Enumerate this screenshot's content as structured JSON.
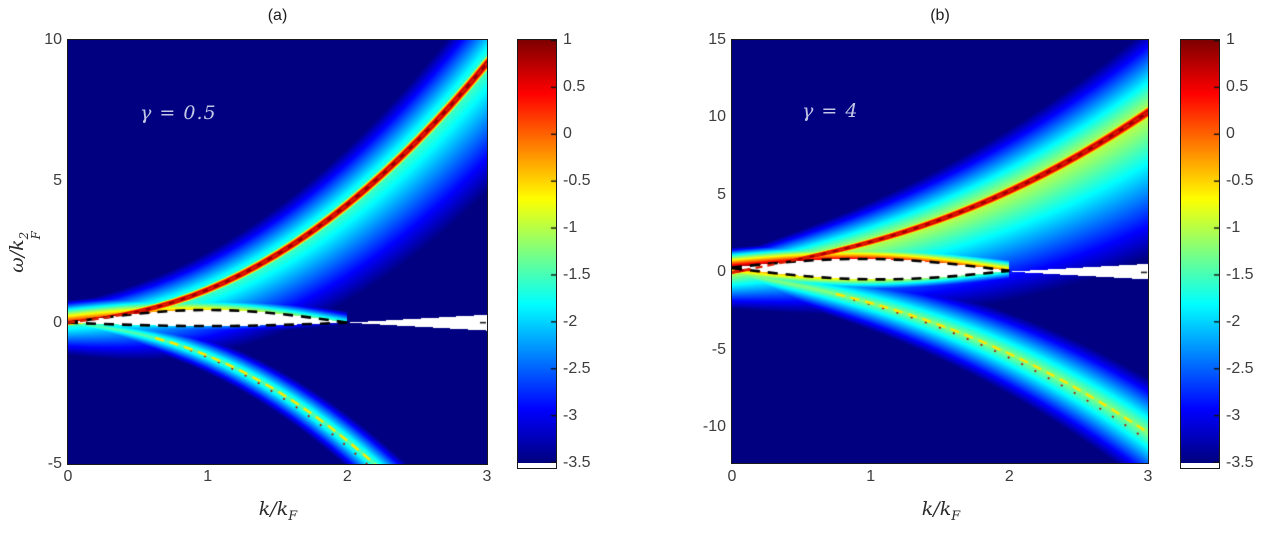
{
  "figure_background": "#ffffff",
  "colorbar": {
    "clim": [
      -3.5,
      1
    ],
    "colormap": "jet",
    "tick_values": [
      1,
      0.5,
      0,
      -0.5,
      -1,
      -1.5,
      -2,
      -2.5,
      -3,
      -3.5
    ],
    "tick_labels": [
      "1",
      "0.5",
      "0",
      "-0.5",
      "-1",
      "-1.5",
      "-2",
      "-2.5",
      "-3",
      "-3.5"
    ]
  },
  "chart_data": [
    {
      "type": "heatmap",
      "panel": "a",
      "title": "(a)",
      "annotation": "γ = 0.5",
      "gamma": 0.5,
      "xlabel": {
        "base": "k/k",
        "sub": "F"
      },
      "ylabel": {
        "base": "ω/k",
        "sup": "2",
        "sub": "F"
      },
      "xlim": [
        0,
        3
      ],
      "ylim": [
        -5,
        10
      ],
      "xtick_values": [
        0,
        1,
        2,
        3
      ],
      "xtick_labels": [
        "0",
        "1",
        "2",
        "3"
      ],
      "ytick_values": [
        10,
        5,
        0,
        -5
      ],
      "ytick_labels": [
        "10",
        "5",
        "0",
        "-5"
      ],
      "clim": [
        -3.5,
        1
      ],
      "colormap": "jet",
      "sound_speed": 0.6,
      "k": [
        0,
        0.125,
        0.25,
        0.375,
        0.5,
        0.625,
        0.75,
        0.875,
        1,
        1.125,
        1.25,
        1.375,
        1.5,
        1.625,
        1.75,
        1.875,
        2,
        2.125,
        2.25,
        2.375,
        2.5,
        2.625,
        2.75,
        2.875,
        3
      ],
      "curves": {
        "bogoliubov_red_dashed": {
          "color": "#d81e00",
          "omega": [
            0,
            0.077,
            0.163,
            0.265,
            0.391,
            0.542,
            0.72,
            0.928,
            1.166,
            1.434,
            1.733,
            2.063,
            2.423,
            2.815,
            3.238,
            3.691,
            4.176,
            4.692,
            5.24,
            5.818,
            6.427,
            7.068,
            7.74,
            8.444,
            9.178
          ]
        },
        "mirror_yellow_dashed": {
          "color": "#ffe800",
          "k_start": 0.625,
          "omega": [
            0,
            -0.077,
            -0.163,
            -0.265,
            -0.391,
            -0.542,
            -0.72,
            -0.928,
            -1.166,
            -1.434,
            -1.733,
            -2.063,
            -2.423,
            -2.815,
            -3.238,
            -3.691,
            -4.176,
            -4.692,
            -5.24,
            -5.818,
            -6.427,
            -7.068,
            -7.74,
            -8.444,
            -9.178
          ]
        },
        "lens_upper_black_dashed": {
          "color": "#000000",
          "k": [
            0,
            0.125,
            0.25,
            0.375,
            0.5,
            0.625,
            0.75,
            0.875,
            1,
            1.125,
            1.25,
            1.375,
            1.5,
            1.625,
            1.75,
            1.875,
            2
          ],
          "omega": [
            0,
            0.088,
            0.172,
            0.25,
            0.318,
            0.374,
            0.416,
            0.441,
            0.45,
            0.441,
            0.416,
            0.374,
            0.318,
            0.25,
            0.172,
            0.088,
            0
          ]
        },
        "lens_lower_black_dashed": {
          "color": "#000000",
          "k": [
            0,
            0.125,
            0.25,
            0.375,
            0.5,
            0.625,
            0.75,
            0.875,
            1,
            1.125,
            1.25,
            1.375,
            1.5,
            1.625,
            1.75,
            1.875,
            2
          ],
          "omega": [
            0,
            -0.023,
            -0.046,
            -0.067,
            -0.085,
            -0.1,
            -0.111,
            -0.118,
            -0.12,
            -0.118,
            -0.111,
            -0.1,
            -0.085,
            -0.067,
            -0.046,
            -0.023,
            0
          ]
        }
      },
      "white_wedge": {
        "k_start": 2,
        "center": 0,
        "slope": 0.28
      },
      "render": {
        "core": [
          0.09,
          0.05,
          0.95
        ],
        "halo": [
          -1.4,
          1.1
        ],
        "haloUp": [
          0.35,
          0.35
        ],
        "haloDn": [
          0.6,
          0.6
        ],
        "neg": [
          0.3,
          0.3,
          -1.4,
          2.0
        ],
        "thUp": [
          0.5,
          1.0,
          5.0
        ],
        "thDn": [
          -1.2,
          1.0,
          4.0
        ]
      }
    },
    {
      "type": "heatmap",
      "panel": "b",
      "title": "(b)",
      "annotation": "γ = 4",
      "gamma": 4,
      "xlabel": {
        "base": "k/k",
        "sub": "F"
      },
      "ylabel": {
        "base": "ω/k",
        "sup": "2",
        "sub": "F"
      },
      "xlim": [
        0,
        3
      ],
      "ylim": [
        -12.3,
        15
      ],
      "xtick_values": [
        0,
        1,
        2,
        3
      ],
      "xtick_labels": [
        "0",
        "1",
        "2",
        "3"
      ],
      "ytick_values": [
        15,
        10,
        5,
        0,
        -5,
        -10
      ],
      "ytick_labels": [
        "15",
        "10",
        "5",
        "0",
        "-5",
        "-10"
      ],
      "clim": [
        -3.5,
        1
      ],
      "colormap": "jet",
      "sound_speed": 1.7,
      "k": [
        0,
        0.125,
        0.25,
        0.375,
        0.5,
        0.625,
        0.75,
        0.875,
        1,
        1.125,
        1.25,
        1.375,
        1.5,
        1.625,
        1.75,
        1.875,
        2,
        2.125,
        2.25,
        2.375,
        2.5,
        2.625,
        2.75,
        2.875,
        3
      ],
      "curves": {
        "bogoliubov_red_dashed": {
          "color": "#d81e00",
          "omega": [
            0,
            0.213,
            0.43,
            0.653,
            0.886,
            1.132,
            1.394,
            1.673,
            1.972,
            2.293,
            2.638,
            3.006,
            3.401,
            3.822,
            4.27,
            4.745,
            5.25,
            5.783,
            6.345,
            6.937,
            7.558,
            8.209,
            8.891,
            9.603,
            10.345
          ]
        },
        "mirror_yellow_dashed": {
          "color": "#ffe800",
          "k_start": 0.75,
          "omega": [
            0,
            -0.213,
            -0.43,
            -0.653,
            -0.886,
            -1.132,
            -1.394,
            -1.673,
            -1.972,
            -2.293,
            -2.638,
            -3.006,
            -3.401,
            -3.822,
            -4.27,
            -4.745,
            -5.25,
            -5.783,
            -6.345,
            -6.937,
            -7.558,
            -8.209,
            -8.891,
            -9.603,
            -10.345
          ]
        },
        "lens_upper_black_dashed": {
          "color": "#000000",
          "k": [
            0,
            0.125,
            0.25,
            0.375,
            0.5,
            0.625,
            0.75,
            0.875,
            1,
            1.125,
            1.25,
            1.375,
            1.5,
            1.625,
            1.75,
            1.875,
            2
          ],
          "omega": [
            0.32,
            0.435,
            0.545,
            0.646,
            0.732,
            0.8,
            0.847,
            0.871,
            0.87,
            0.844,
            0.792,
            0.718,
            0.622,
            0.508,
            0.38,
            0.243,
            0.1
          ]
        },
        "lens_lower_black_dashed": {
          "color": "#000000",
          "k": [
            0,
            0.125,
            0.25,
            0.375,
            0.5,
            0.625,
            0.75,
            0.875,
            1,
            1.125,
            1.25,
            1.375,
            1.5,
            1.625,
            1.75,
            1.875,
            2
          ],
          "omega": [
            0.28,
            0.144,
            0.013,
            -0.109,
            -0.218,
            -0.308,
            -0.379,
            -0.427,
            -0.45,
            -0.449,
            -0.424,
            -0.376,
            -0.308,
            -0.222,
            -0.122,
            -0.014,
            0.1
          ]
        }
      },
      "white_wedge": {
        "k_start": 2,
        "center": 0.05,
        "slope": 0.5
      },
      "render": {
        "core": [
          0.14,
          0.08,
          0.92
        ],
        "halo": [
          -0.9,
          1.1
        ],
        "haloUp": [
          0.5,
          0.6
        ],
        "haloDn": [
          1.0,
          1.0
        ],
        "neg": [
          0.5,
          0.5,
          -1.2,
          1.3
        ],
        "thUp": [
          1.0,
          0.55,
          3.5
        ],
        "thDn": [
          -0.1,
          0.7,
          3.0
        ]
      }
    }
  ]
}
